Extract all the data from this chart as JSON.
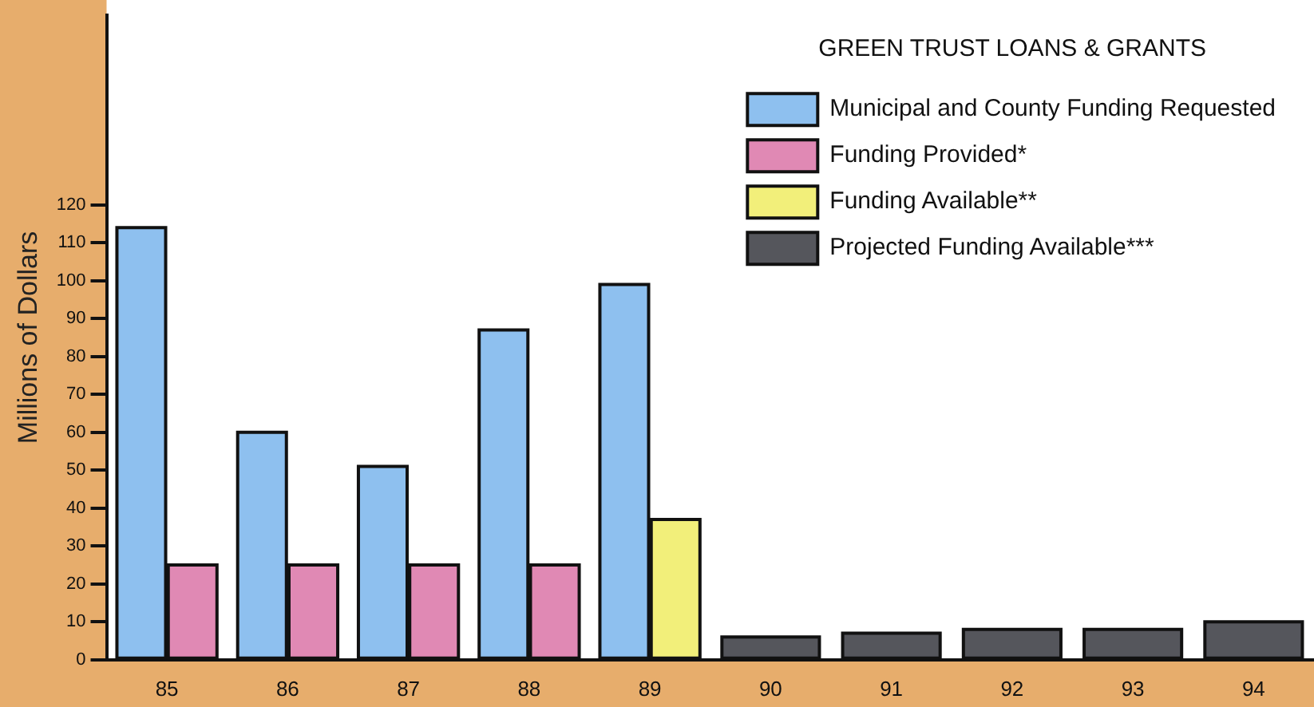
{
  "chart_data": {
    "type": "bar",
    "legend_title": "GREEN TRUST LOANS & GRANTS",
    "ylabel": "Millions of Dollars",
    "categories": [
      "85",
      "86",
      "87",
      "88",
      "89",
      "90",
      "91",
      "92",
      "93",
      "94"
    ],
    "series": [
      {
        "name": "Municipal and County Funding Requested",
        "color": "#8ec0ef",
        "values": [
          114,
          60,
          51,
          87,
          99,
          null,
          null,
          null,
          null,
          null
        ]
      },
      {
        "name": "Funding Provided*",
        "color": "#e089b4",
        "values": [
          25,
          25,
          25,
          25,
          null,
          null,
          null,
          null,
          null,
          null
        ]
      },
      {
        "name": "Funding Available**",
        "color": "#f2ef7a",
        "values": [
          null,
          null,
          null,
          null,
          37,
          null,
          null,
          null,
          null,
          null
        ]
      },
      {
        "name": "Projected Funding Available***",
        "color": "#55565c",
        "values": [
          null,
          null,
          null,
          null,
          null,
          6,
          7,
          8,
          8,
          10
        ]
      }
    ],
    "ylim": [
      0,
      170
    ],
    "yticks": [
      0,
      10,
      20,
      30,
      40,
      50,
      60,
      70,
      80,
      90,
      100,
      110,
      120
    ],
    "grid": false,
    "legend": "top right"
  }
}
